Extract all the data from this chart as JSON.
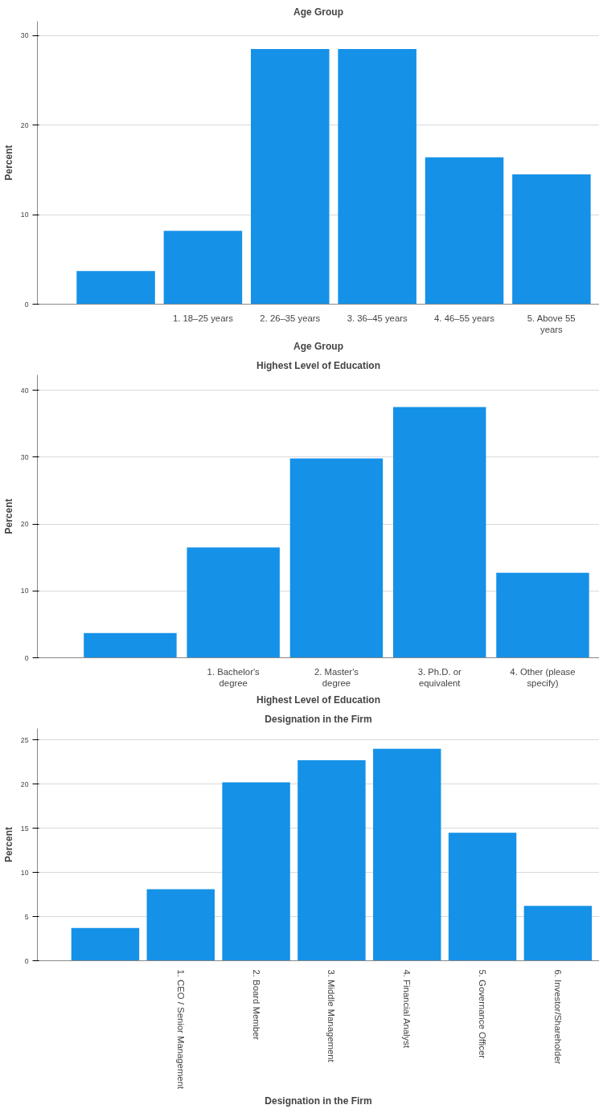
{
  "chart_data": [
    {
      "type": "bar",
      "title": "Age Group",
      "xlabel": "Age Group",
      "ylabel": "Percent",
      "categories": [
        null,
        "1. 18–25 years",
        "2. 26–35 years",
        "3. 36–45 years",
        "4. 46–55 years",
        "5. Above 55 years"
      ],
      "values": [
        3.7,
        8.2,
        28.5,
        28.5,
        16.4,
        14.5
      ],
      "color": "#1591e8",
      "ylim": [
        0,
        31.6
      ],
      "yticks": [
        0,
        10,
        20,
        30
      ],
      "grid": "y"
    },
    {
      "type": "bar",
      "title": "Highest Level of Education",
      "xlabel": "Highest Level of Education",
      "ylabel": "Percent",
      "categories": [
        null,
        "1. Bachelor's degree",
        "2. Master's degree",
        "3. Ph.D. or equivalent",
        "4. Other (please specify)"
      ],
      "values": [
        3.7,
        16.5,
        29.8,
        37.5,
        12.7
      ],
      "color": "#1591e8",
      "ylim": [
        0,
        42.3
      ],
      "yticks": [
        0,
        10,
        20,
        30,
        40
      ],
      "grid": "y"
    },
    {
      "type": "bar",
      "title": "Designation in the Firm",
      "xlabel": "Designation in the Firm",
      "ylabel": "Percent",
      "categories": [
        null,
        "1. CEO / Senior Management",
        "2. Board Member",
        "3. Middle Management",
        "4. Financial Analyst",
        "5. Governance Officer",
        "6. Investor/Shareholder"
      ],
      "values": [
        3.7,
        8.1,
        20.2,
        22.7,
        24.0,
        14.5,
        6.2
      ],
      "color": "#1591e8",
      "ylim": [
        0,
        26.3
      ],
      "yticks": [
        0,
        5,
        10,
        15,
        20,
        25
      ],
      "grid": "y"
    }
  ]
}
